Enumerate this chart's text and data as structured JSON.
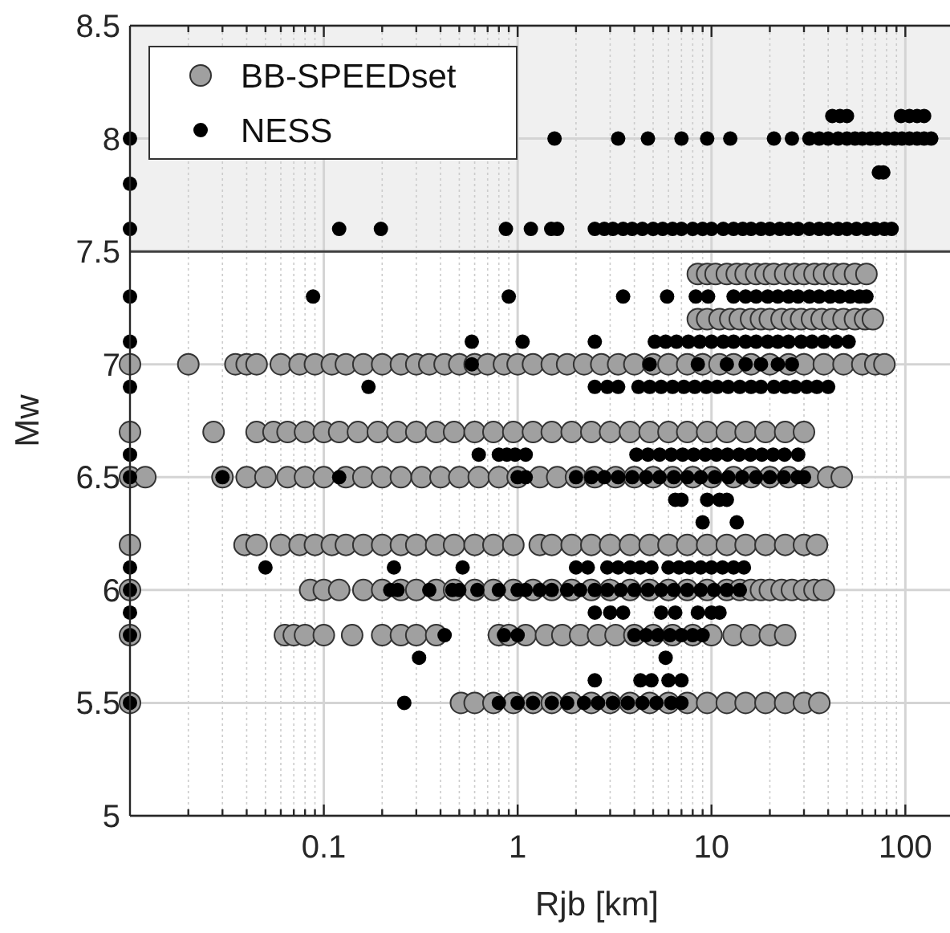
{
  "chart_data": {
    "type": "scatter",
    "xlabel": "Rjb [km]",
    "ylabel": "Mw",
    "log": "x",
    "grid": true,
    "legend": "top left",
    "marker": "circle",
    "xlim": [
      0.01,
      170
    ],
    "ylim": [
      5,
      8.5
    ],
    "xticks": [
      {
        "value": 0.02,
        "label": null
      },
      {
        "value": 0.03,
        "label": null
      },
      {
        "value": 0.04,
        "label": null
      },
      {
        "value": 0.05,
        "label": null
      },
      {
        "value": 0.06,
        "label": null
      },
      {
        "value": 0.07,
        "label": null
      },
      {
        "value": 0.08,
        "label": null
      },
      {
        "value": 0.09,
        "label": null
      },
      0.1,
      {
        "value": 0.2,
        "label": null
      },
      {
        "value": 0.3,
        "label": null
      },
      {
        "value": 0.4,
        "label": null
      },
      {
        "value": 0.5,
        "label": null
      },
      {
        "value": 0.6,
        "label": null
      },
      {
        "value": 0.7,
        "label": null
      },
      {
        "value": 0.8,
        "label": null
      },
      {
        "value": 0.9,
        "label": null
      },
      1,
      {
        "value": 2,
        "label": null
      },
      {
        "value": 3,
        "label": null
      },
      {
        "value": 4,
        "label": null
      },
      {
        "value": 5,
        "label": null
      },
      {
        "value": 6,
        "label": null
      },
      {
        "value": 7,
        "label": null
      },
      {
        "value": 8,
        "label": null
      },
      {
        "value": 9,
        "label": null
      },
      10,
      {
        "value": 20,
        "label": null
      },
      {
        "value": 30,
        "label": null
      },
      {
        "value": 40,
        "label": null
      },
      {
        "value": 50,
        "label": null
      },
      {
        "value": 60,
        "label": null
      },
      {
        "value": 70,
        "label": null
      },
      {
        "value": 80,
        "label": null
      },
      {
        "value": 90,
        "label": null
      },
      100
    ],
    "yticks": [
      5,
      5.5,
      6,
      6.5,
      7,
      7.5,
      8,
      8.5
    ],
    "bands": [
      {
        "axis": "y",
        "from": 7.5,
        "to": 8.5,
        "color": "#f0f0f0"
      }
    ],
    "ref_lines": [
      {
        "axis": "y",
        "value": 7.5,
        "color": "#404040"
      }
    ],
    "series": [
      {
        "name": "BB-SPEEDset",
        "color": "#a0a0a0",
        "x": [
          8.5,
          9.5,
          10.5,
          12,
          13.5,
          15,
          17,
          19,
          21,
          24,
          27,
          30,
          34,
          38,
          43,
          48,
          55,
          63,
          8.5,
          9.5,
          11,
          12.5,
          14,
          16,
          18,
          20,
          23,
          26,
          29,
          33,
          37,
          42,
          48,
          55,
          62,
          68,
          0.01,
          0.02,
          0.035,
          0.04,
          0.045,
          0.06,
          0.075,
          0.09,
          0.11,
          0.13,
          0.16,
          0.2,
          0.25,
          0.3,
          0.35,
          0.42,
          0.5,
          0.6,
          0.7,
          0.85,
          1,
          1.2,
          1.5,
          1.8,
          2.2,
          2.7,
          3.3,
          4,
          5,
          6,
          7.5,
          9,
          11,
          13,
          16,
          20,
          25,
          30,
          38,
          48,
          60,
          70,
          78,
          0.01,
          0.027,
          0.045,
          0.055,
          0.065,
          0.08,
          0.1,
          0.12,
          0.15,
          0.19,
          0.24,
          0.3,
          0.38,
          0.47,
          0.6,
          0.75,
          0.95,
          1.2,
          1.5,
          1.9,
          2.4,
          3,
          3.8,
          4.8,
          6,
          7.5,
          9.5,
          12,
          15,
          19,
          24,
          30,
          0.01,
          0.012,
          0.03,
          0.04,
          0.05,
          0.065,
          0.08,
          0.1,
          0.13,
          0.16,
          0.2,
          0.25,
          0.32,
          0.4,
          0.5,
          0.63,
          0.8,
          1,
          1.3,
          1.6,
          2,
          2.5,
          3.2,
          4,
          5,
          6.3,
          8,
          10,
          13,
          16,
          20,
          25,
          32,
          40,
          47,
          0.01,
          0.039,
          0.045,
          0.06,
          0.075,
          0.09,
          0.11,
          0.13,
          0.16,
          0.2,
          0.25,
          0.3,
          0.38,
          0.47,
          0.6,
          0.75,
          0.95,
          1.3,
          1.5,
          1.9,
          2.4,
          3,
          3.8,
          4.8,
          6,
          7.5,
          9.5,
          12,
          15,
          19,
          24,
          30,
          35,
          0.01,
          0.085,
          0.1,
          0.12,
          0.16,
          0.2,
          0.25,
          0.3,
          0.38,
          0.47,
          0.6,
          0.75,
          0.95,
          1.2,
          1.5,
          1.9,
          2.4,
          3,
          3.8,
          4.8,
          6,
          7.5,
          9.5,
          12,
          14,
          16,
          18,
          20,
          23,
          26,
          30,
          34,
          38,
          0.01,
          0.063,
          0.07,
          0.08,
          0.1,
          0.14,
          0.2,
          0.25,
          0.3,
          0.38,
          0.8,
          0.9,
          1.1,
          1.4,
          1.7,
          2.1,
          2.6,
          3.2,
          4,
          5,
          6.3,
          8,
          10,
          13,
          16,
          20,
          24,
          0.01,
          0.51,
          0.6,
          0.75,
          0.95,
          1.2,
          1.5,
          1.9,
          2.4,
          3,
          3.8,
          4.8,
          6,
          7.5,
          9.5,
          12,
          15,
          19,
          24,
          30,
          36
        ],
        "values": [
          7.4,
          7.4,
          7.4,
          7.4,
          7.4,
          7.4,
          7.4,
          7.4,
          7.4,
          7.4,
          7.4,
          7.4,
          7.4,
          7.4,
          7.4,
          7.4,
          7.4,
          7.4,
          7.2,
          7.2,
          7.2,
          7.2,
          7.2,
          7.2,
          7.2,
          7.2,
          7.2,
          7.2,
          7.2,
          7.2,
          7.2,
          7.2,
          7.2,
          7.2,
          7.2,
          7.2,
          7,
          7,
          7,
          7,
          7,
          7,
          7,
          7,
          7,
          7,
          7,
          7,
          7,
          7,
          7,
          7,
          7,
          7,
          7,
          7,
          7,
          7,
          7,
          7,
          7,
          7,
          7,
          7,
          7,
          7,
          7,
          7,
          7,
          7,
          7,
          7,
          7,
          7,
          7,
          7,
          7,
          7,
          7,
          6.7,
          6.7,
          6.7,
          6.7,
          6.7,
          6.7,
          6.7,
          6.7,
          6.7,
          6.7,
          6.7,
          6.7,
          6.7,
          6.7,
          6.7,
          6.7,
          6.7,
          6.7,
          6.7,
          6.7,
          6.7,
          6.7,
          6.7,
          6.7,
          6.7,
          6.7,
          6.7,
          6.7,
          6.7,
          6.7,
          6.7,
          6.7,
          6.5,
          6.5,
          6.5,
          6.5,
          6.5,
          6.5,
          6.5,
          6.5,
          6.5,
          6.5,
          6.5,
          6.5,
          6.5,
          6.5,
          6.5,
          6.5,
          6.5,
          6.5,
          6.5,
          6.5,
          6.5,
          6.5,
          6.5,
          6.5,
          6.5,
          6.5,
          6.5,
          6.5,
          6.5,
          6.5,
          6.5,
          6.5,
          6.5,
          6.5,
          6.5,
          6.2,
          6.2,
          6.2,
          6.2,
          6.2,
          6.2,
          6.2,
          6.2,
          6.2,
          6.2,
          6.2,
          6.2,
          6.2,
          6.2,
          6.2,
          6.2,
          6.2,
          6.2,
          6.2,
          6.2,
          6.2,
          6.2,
          6.2,
          6.2,
          6.2,
          6.2,
          6.2,
          6.2,
          6.2,
          6.2,
          6.2,
          6.2,
          6.2,
          6,
          6,
          6,
          6,
          6,
          6,
          6,
          6,
          6,
          6,
          6,
          6,
          6,
          6,
          6,
          6,
          6,
          6,
          6,
          6,
          6,
          6,
          6,
          6,
          6,
          6,
          6,
          6,
          6,
          6,
          6,
          6,
          6,
          5.8,
          5.8,
          5.8,
          5.8,
          5.8,
          5.8,
          5.8,
          5.8,
          5.8,
          5.8,
          5.8,
          5.8,
          5.8,
          5.8,
          5.8,
          5.8,
          5.8,
          5.8,
          5.8,
          5.8,
          5.8,
          5.8,
          5.8,
          5.8,
          5.8,
          5.8,
          5.8,
          5.5,
          5.5,
          5.5,
          5.5,
          5.5,
          5.5,
          5.5,
          5.5,
          5.5,
          5.5,
          5.5,
          5.5,
          5.5,
          5.5,
          5.5,
          5.5,
          5.5,
          5.5,
          5.5,
          5.5,
          5.5
        ]
      },
      {
        "name": "NESS",
        "color": "#000000",
        "x": [
          42,
          46,
          50,
          95,
          105,
          115,
          125,
          0.01,
          1.55,
          3.3,
          4.7,
          7,
          9.5,
          12.5,
          21,
          26,
          32,
          36,
          40,
          45,
          50,
          55,
          60,
          66,
          72,
          80,
          88,
          96,
          105,
          115,
          125,
          136,
          73,
          77,
          0.01,
          0.01,
          0.12,
          0.197,
          0.87,
          1.17,
          1.49,
          1.6,
          2.5,
          2.8,
          3.1,
          3.5,
          3.9,
          4.4,
          5,
          5.6,
          6.3,
          7,
          8,
          9,
          10,
          11.5,
          13,
          14.5,
          16,
          18,
          20,
          22.5,
          25,
          28,
          32,
          36,
          40,
          45,
          50,
          56,
          63,
          70,
          78,
          85,
          0.01,
          0.088,
          0.9,
          3.5,
          5.9,
          8.3,
          9.6,
          13,
          15,
          17,
          19.5,
          22,
          25,
          28,
          32,
          36,
          41,
          46,
          52,
          58,
          63,
          0.01,
          0.58,
          1.06,
          2.5,
          5.1,
          5.8,
          6.6,
          7.6,
          8.7,
          10,
          11.5,
          13,
          15,
          17,
          19.5,
          22,
          25,
          29,
          33,
          38,
          44,
          51,
          0.58,
          4.8,
          8.5,
          12,
          15,
          18,
          22,
          26,
          0.01,
          0.17,
          2.5,
          2.9,
          3.3,
          4.2,
          4.8,
          5.5,
          6.3,
          7.2,
          8.2,
          9.4,
          10.7,
          12.2,
          14,
          16,
          18,
          21,
          24,
          27,
          31,
          35,
          40,
          0.01,
          0.63,
          0.8,
          0.88,
          0.97,
          1.1,
          4.1,
          4.7,
          5.4,
          6.2,
          7.1,
          8.1,
          9.3,
          10.6,
          12.1,
          13.9,
          15.9,
          18.2,
          20.8,
          23.8,
          28,
          0.01,
          0.03,
          0.12,
          1.0,
          1.1,
          2,
          2.4,
          2.8,
          3.3,
          3.9,
          4.6,
          5.4,
          6.4,
          7.5,
          8.8,
          10.4,
          12.2,
          14.4,
          17,
          20,
          23.6,
          27.8,
          30,
          6.5,
          7,
          9.5,
          11,
          12,
          9,
          13.5,
          0.01,
          0.05,
          0.23,
          0.52,
          2,
          2.3,
          2.9,
          3.3,
          3.8,
          4.3,
          4.9,
          6,
          6.8,
          7.7,
          8.8,
          10,
          11.4,
          13,
          14.7,
          0.01,
          0.22,
          0.24,
          0.35,
          0.46,
          0.5,
          0.62,
          0.8,
          1.0,
          1.1,
          1.3,
          1.5,
          1.8,
          2.1,
          2.5,
          2.9,
          3.4,
          4,
          4.7,
          5.5,
          6.4,
          7.5,
          8.8,
          10.3,
          12,
          14,
          0.01,
          2.5,
          3,
          3.5,
          5.5,
          6.5,
          8.5,
          10,
          11,
          0.01,
          0.42,
          0.85,
          1.0,
          4,
          4.6,
          5.3,
          6.1,
          7,
          8,
          9,
          0.31,
          5.8,
          2.5,
          4.3,
          4.9,
          6,
          7,
          0.01,
          0.26,
          0.8,
          1,
          1.2,
          1.5,
          1.8,
          2.2,
          2.6,
          3.1,
          3.7,
          4.4,
          5.2,
          6.2,
          7
        ],
        "values": [
          8.1,
          8.1,
          8.1,
          8.1,
          8.1,
          8.1,
          8.1,
          8,
          8,
          8,
          8,
          8,
          8,
          8,
          8,
          8,
          8,
          8,
          8,
          8,
          8,
          8,
          8,
          8,
          8,
          8,
          8,
          8,
          8,
          8,
          8,
          8,
          7.85,
          7.85,
          7.8,
          7.6,
          7.6,
          7.6,
          7.6,
          7.6,
          7.6,
          7.6,
          7.6,
          7.6,
          7.6,
          7.6,
          7.6,
          7.6,
          7.6,
          7.6,
          7.6,
          7.6,
          7.6,
          7.6,
          7.6,
          7.6,
          7.6,
          7.6,
          7.6,
          7.6,
          7.6,
          7.6,
          7.6,
          7.6,
          7.6,
          7.6,
          7.6,
          7.6,
          7.6,
          7.6,
          7.6,
          7.6,
          7.6,
          7.6,
          7.3,
          7.3,
          7.3,
          7.3,
          7.3,
          7.3,
          7.3,
          7.3,
          7.3,
          7.3,
          7.3,
          7.3,
          7.3,
          7.3,
          7.3,
          7.3,
          7.3,
          7.3,
          7.3,
          7.3,
          7.3,
          7.1,
          7.1,
          7.1,
          7.1,
          7.1,
          7.1,
          7.1,
          7.1,
          7.1,
          7.1,
          7.1,
          7.1,
          7.1,
          7.1,
          7.1,
          7.1,
          7.1,
          7.1,
          7.1,
          7.1,
          7.1,
          7.1,
          7,
          7,
          7,
          7,
          7,
          7,
          7,
          7,
          6.9,
          6.9,
          6.9,
          6.9,
          6.9,
          6.9,
          6.9,
          6.9,
          6.9,
          6.9,
          6.9,
          6.9,
          6.9,
          6.9,
          6.9,
          6.9,
          6.9,
          6.9,
          6.9,
          6.9,
          6.9,
          6.9,
          6.9,
          6.6,
          6.6,
          6.6,
          6.6,
          6.6,
          6.6,
          6.6,
          6.6,
          6.6,
          6.6,
          6.6,
          6.6,
          6.6,
          6.6,
          6.6,
          6.6,
          6.6,
          6.6,
          6.6,
          6.6,
          6.6,
          6.5,
          6.5,
          6.5,
          6.5,
          6.5,
          6.5,
          6.5,
          6.5,
          6.5,
          6.5,
          6.5,
          6.5,
          6.5,
          6.5,
          6.5,
          6.5,
          6.5,
          6.5,
          6.5,
          6.5,
          6.5,
          6.5,
          6.5,
          6.4,
          6.4,
          6.4,
          6.4,
          6.4,
          6.3,
          6.3,
          6.1,
          6.1,
          6.1,
          6.1,
          6.1,
          6.1,
          6.1,
          6.1,
          6.1,
          6.1,
          6.1,
          6.1,
          6.1,
          6.1,
          6.1,
          6.1,
          6.1,
          6.1,
          6.1,
          6,
          6,
          6,
          6,
          6,
          6,
          6,
          6,
          6,
          6,
          6,
          6,
          6,
          6,
          6,
          6,
          6,
          6,
          6,
          6,
          6,
          6,
          6,
          6,
          6,
          6,
          5.9,
          5.9,
          5.9,
          5.9,
          5.9,
          5.9,
          5.9,
          5.9,
          5.9,
          5.8,
          5.8,
          5.8,
          5.8,
          5.8,
          5.8,
          5.8,
          5.8,
          5.8,
          5.8,
          5.8,
          5.7,
          5.7,
          5.6,
          5.6,
          5.6,
          5.6,
          5.6,
          5.5,
          5.5,
          5.5,
          5.5,
          5.5,
          5.5,
          5.5,
          5.5,
          5.5,
          5.5,
          5.5,
          5.5,
          5.5,
          5.5,
          5.5
        ]
      }
    ]
  }
}
